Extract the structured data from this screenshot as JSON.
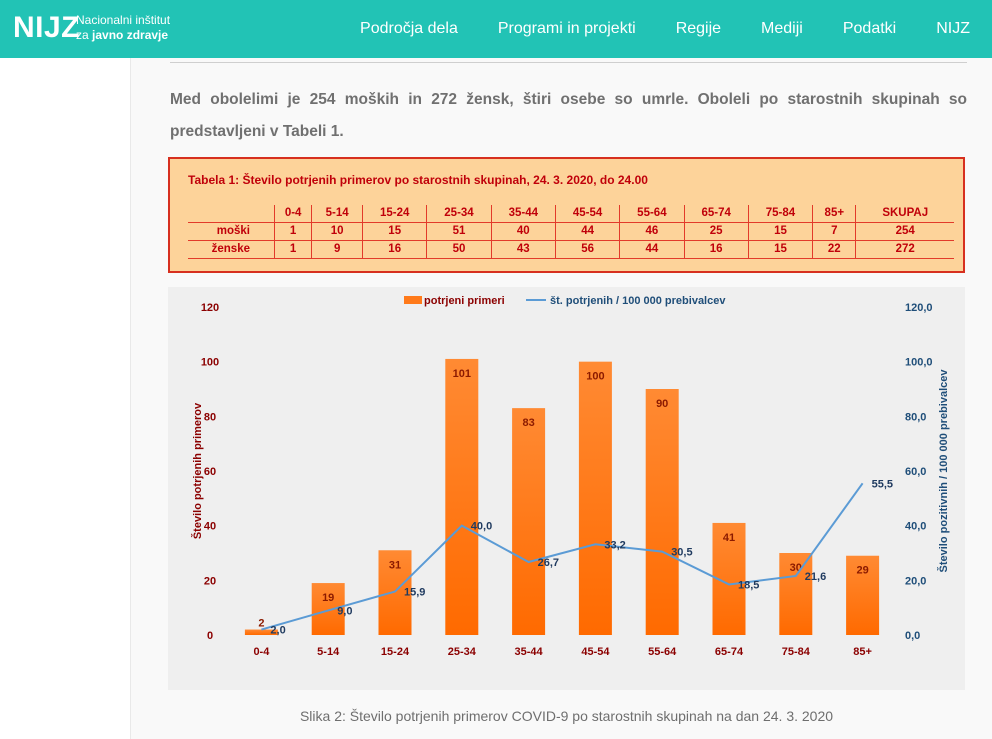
{
  "header": {
    "logo_mark": "NIJZ",
    "logo_line1": "Nacionalni inštitut",
    "logo_line2_prefix": "za ",
    "logo_line2_bold": "javno zdravje",
    "nav": [
      "Področja dela",
      "Programi in projekti",
      "Regije",
      "Mediji",
      "Podatki",
      "NIJZ"
    ]
  },
  "article": {
    "intro": "Med obolelimi je 254 moških in 272 žensk, štiri osebe so umrle. Oboleli po starostnih skupinah so predstavljeni v Tabeli 1.",
    "table": {
      "title": "Tabela 1: Število potrjenih primerov po starostnih skupinah, 24. 3. 2020, do 24.00",
      "headers": [
        "",
        "0-4",
        "5-14",
        "15-24",
        "25-34",
        "35-44",
        "45-54",
        "55-64",
        "65-74",
        "75-84",
        "85+",
        "SKUPAJ"
      ],
      "rows": [
        [
          "moški",
          "1",
          "10",
          "15",
          "51",
          "40",
          "44",
          "46",
          "25",
          "15",
          "7",
          "254"
        ],
        [
          "ženske",
          "1",
          "9",
          "16",
          "50",
          "43",
          "56",
          "44",
          "16",
          "15",
          "22",
          "272"
        ]
      ]
    },
    "caption": "Slika 2: Število potrjenih primerov COVID-9 po starostnih skupinah na dan 24. 3. 2020"
  },
  "colors": {
    "header_bg": "#22c3b5",
    "bar": "#ff7a1a",
    "line": "#5b9bd5",
    "left_axis": "#8b0000",
    "right_axis": "#1f4e79",
    "table_bg": "#fdd39a",
    "table_text": "#c0000a"
  },
  "chart_data": {
    "type": "bar",
    "categories": [
      "0-4",
      "5-14",
      "15-24",
      "25-34",
      "35-44",
      "45-54",
      "55-64",
      "65-74",
      "75-84",
      "85+"
    ],
    "series": [
      {
        "name": "potrjeni primeri",
        "type": "bar",
        "axis": "left",
        "values": [
          2,
          19,
          31,
          101,
          83,
          100,
          90,
          41,
          30,
          29
        ],
        "labels": [
          "2",
          "19",
          "31",
          "101",
          "83",
          "100",
          "90",
          "41",
          "30",
          "29"
        ]
      },
      {
        "name": "št. potrjenih / 100 000 prebivalcev",
        "type": "line",
        "axis": "right",
        "values": [
          2.0,
          9.0,
          15.9,
          40.0,
          26.7,
          33.2,
          30.5,
          18.5,
          21.6,
          55.5
        ],
        "labels": [
          "2,0",
          "9,0",
          "15,9",
          "40,0",
          "26,7",
          "33,2",
          "30,5",
          "18,5",
          "21,6",
          "55,5"
        ]
      }
    ],
    "ylabel": "Število potrjenih primerov",
    "y2label": "Število pozitivnih / 100 000 prebivalcev",
    "ylim": [
      0,
      120
    ],
    "y2lim": [
      0,
      120
    ],
    "yticks": [
      "0",
      "20",
      "40",
      "60",
      "80",
      "100",
      "120"
    ],
    "y2ticks": [
      "0,0",
      "20,0",
      "40,0",
      "60,0",
      "80,0",
      "100,0",
      "120,0"
    ],
    "legend": "top-center",
    "grid": false
  }
}
